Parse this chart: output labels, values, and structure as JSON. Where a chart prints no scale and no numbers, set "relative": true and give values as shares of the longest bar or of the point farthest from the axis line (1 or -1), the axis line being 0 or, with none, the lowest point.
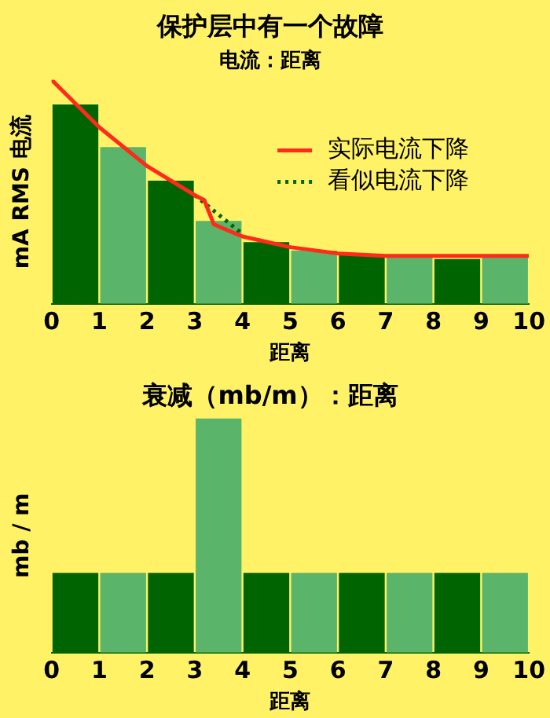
{
  "chart_data": [
    {
      "type": "bar",
      "title": "保护层中有一个故障",
      "subtitle": "电流：距离",
      "xlabel": "距离",
      "ylabel": "mA RMS 电流",
      "relative": true,
      "xlim": [
        0,
        10
      ],
      "xticks": [
        0,
        1,
        2,
        3,
        4,
        5,
        6,
        7,
        8,
        9,
        10
      ],
      "grid": false,
      "legend": "top right",
      "marker": "none",
      "series": [
        {
          "x": [
            0.5,
            1.5,
            2.5,
            3.5,
            4.5,
            5.5,
            6.5,
            7.5,
            8.5,
            9.5
          ],
          "values": [
            0.89,
            0.7,
            0.55,
            0.37,
            0.275,
            0.238,
            0.218,
            0.21,
            0.2,
            0.21
          ],
          "colors": [
            "#006400",
            "#5ab46a",
            "#006400",
            "#5ab46a",
            "#006400",
            "#5ab46a",
            "#006400",
            "#5ab46a",
            "#006400",
            "#5ab46a"
          ]
        },
        {
          "type": "line",
          "name": "实际电流下降",
          "color": "#ff2a1a",
          "line_style": "solid",
          "x": [
            0,
            1,
            2,
            3,
            3.2,
            3.4,
            3.7,
            4,
            5,
            6,
            7,
            8,
            9,
            10
          ],
          "values": [
            1,
            0.788,
            0.615,
            0.485,
            0.463,
            0.355,
            0.327,
            0.301,
            0.253,
            0.225,
            0.214,
            0.214,
            0.214,
            0.214
          ]
        },
        {
          "type": "line",
          "name": "看似电流下降",
          "color": "#006400",
          "line_style": "dotted",
          "x": [
            3,
            3.5,
            4
          ],
          "values": [
            0.485,
            0.398,
            0.312
          ]
        }
      ]
    },
    {
      "type": "bar",
      "title": "衰减（mb/m）：距离",
      "xlabel": "距离",
      "ylabel": "mb / m",
      "relative": true,
      "xlim": [
        0,
        10
      ],
      "xticks": [
        0,
        1,
        2,
        3,
        4,
        5,
        6,
        7,
        8,
        9,
        10
      ],
      "grid": false,
      "series": [
        {
          "x": [
            0.5,
            1.5,
            2.5,
            3.5,
            4.5,
            5.5,
            6.5,
            7.5,
            8.5,
            9.5
          ],
          "values": [
            0.34,
            0.34,
            0.34,
            1,
            0.34,
            0.34,
            0.34,
            0.34,
            0.34,
            0.34
          ],
          "colors": [
            "#006400",
            "#5ab46a",
            "#006400",
            "#5ab46a",
            "#006400",
            "#5ab46a",
            "#006400",
            "#5ab46a",
            "#006400",
            "#5ab46a"
          ]
        }
      ]
    }
  ]
}
